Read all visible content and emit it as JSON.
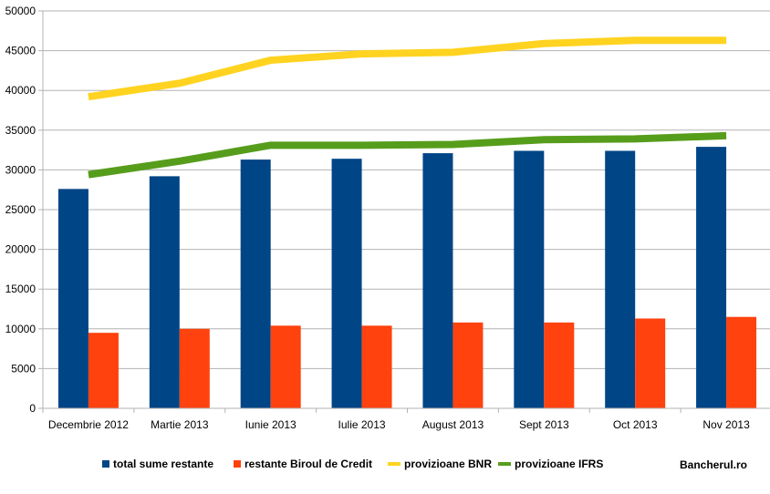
{
  "chart_data": {
    "type": "bar",
    "categories": [
      "Decembrie 2012",
      "Martie 2013",
      "Iunie 2013",
      "Iulie 2013",
      "August 2013",
      "Sept 2013",
      "Oct 2013",
      "Nov 2013"
    ],
    "ylim": [
      0,
      50000
    ],
    "yticks": [
      0,
      5000,
      10000,
      15000,
      20000,
      25000,
      30000,
      35000,
      40000,
      45000,
      50000
    ],
    "grid": true,
    "legend_position": "bottom",
    "series": [
      {
        "name": "total sume restante",
        "kind": "bar",
        "color": "#004586",
        "values": [
          27600,
          29200,
          31300,
          31400,
          32100,
          32400,
          32400,
          32900
        ]
      },
      {
        "name": "restante Biroul de Credit",
        "kind": "bar",
        "color": "#ff420e",
        "values": [
          9500,
          10000,
          10400,
          10400,
          10800,
          10800,
          11300,
          11500
        ]
      },
      {
        "name": "provizioane BNR",
        "kind": "line",
        "color": "#ffd320",
        "values": [
          39200,
          40900,
          43800,
          44600,
          44800,
          45900,
          46300,
          46300
        ]
      },
      {
        "name": "provizioane IFRS",
        "kind": "line",
        "color": "#579d1c",
        "values": [
          29400,
          31100,
          33100,
          33100,
          33200,
          33800,
          33900,
          34300
        ]
      }
    ],
    "watermark": "Bancherul.ro"
  }
}
